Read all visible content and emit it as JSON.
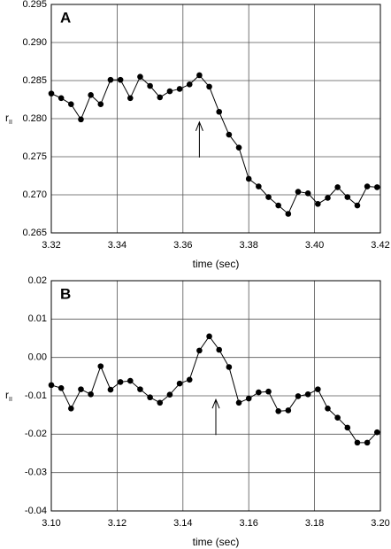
{
  "chart_data": [
    {
      "type": "line",
      "panel": "A",
      "xlabel": "time (sec)",
      "ylabel": "r",
      "ylabel_sub": "II",
      "color": "#000000",
      "grid": true,
      "xlim": [
        3.32,
        3.42
      ],
      "xticks": [
        3.32,
        3.34,
        3.36,
        3.38,
        {
          "value": 3.4,
          "label": "3.40"
        },
        3.42
      ],
      "ylim": [
        0.265,
        0.295
      ],
      "yticks": [
        0.265,
        {
          "value": 0.27,
          "label": "0.270"
        },
        0.275,
        {
          "value": 0.28,
          "label": "0.280"
        },
        0.285,
        {
          "value": 0.29,
          "label": "0.290"
        },
        0.295
      ],
      "arrow_x": 3.365,
      "x": [
        3.32,
        3.323,
        3.326,
        3.329,
        3.332,
        3.335,
        3.338,
        3.341,
        3.344,
        3.347,
        3.35,
        3.353,
        3.356,
        3.359,
        3.362,
        3.365,
        3.368,
        3.371,
        3.374,
        3.377,
        3.38,
        3.383,
        3.386,
        3.389,
        3.392,
        3.395,
        3.398,
        3.401,
        3.404,
        3.407,
        3.41,
        3.413,
        3.416,
        3.419
      ],
      "values": [
        0.2833,
        0.2827,
        0.2819,
        0.2799,
        0.2831,
        0.2819,
        0.2851,
        0.2851,
        0.2827,
        0.2855,
        0.2843,
        0.2828,
        0.2836,
        0.2839,
        0.2845,
        0.2857,
        0.2842,
        0.2809,
        0.2779,
        0.2762,
        0.2721,
        0.2711,
        0.2697,
        0.2686,
        0.2675,
        0.2704,
        0.2702,
        0.2688,
        0.2696,
        0.271,
        0.2697,
        0.2686,
        0.2711,
        0.271
      ]
    },
    {
      "type": "line",
      "panel": "B",
      "xlabel": "time (sec)",
      "ylabel": "r",
      "ylabel_sub": "II",
      "color": "#000000",
      "grid": true,
      "xlim": [
        3.1,
        3.2
      ],
      "xticks": [
        {
          "value": 3.1,
          "label": "3.10"
        },
        3.12,
        3.14,
        3.16,
        3.18,
        {
          "value": 3.2,
          "label": "3.20"
        }
      ],
      "ylim": [
        -0.04,
        0.02
      ],
      "yticks": [
        -0.04,
        -0.03,
        -0.02,
        -0.01,
        {
          "value": 0,
          "label": "0.00"
        },
        0.01,
        0.02
      ],
      "arrow_x": 3.15,
      "x": [
        3.1,
        3.103,
        3.106,
        3.109,
        3.112,
        3.115,
        3.118,
        3.121,
        3.124,
        3.127,
        3.13,
        3.133,
        3.136,
        3.139,
        3.142,
        3.145,
        3.148,
        3.151,
        3.154,
        3.157,
        3.16,
        3.163,
        3.166,
        3.169,
        3.172,
        3.175,
        3.178,
        3.181,
        3.184,
        3.187,
        3.19,
        3.193,
        3.196,
        3.199
      ],
      "values": [
        -0.0072,
        -0.008,
        -0.0133,
        -0.0083,
        -0.0096,
        -0.0023,
        -0.0084,
        -0.0064,
        -0.0061,
        -0.0083,
        -0.0104,
        -0.0118,
        -0.0097,
        -0.0068,
        -0.0058,
        0.0018,
        0.0055,
        0.002,
        -0.0025,
        -0.0118,
        -0.0107,
        -0.0091,
        -0.0089,
        -0.014,
        -0.0138,
        -0.0101,
        -0.0096,
        -0.0083,
        -0.0133,
        -0.0157,
        -0.0183,
        -0.0222,
        -0.0222,
        -0.0195
      ]
    }
  ]
}
